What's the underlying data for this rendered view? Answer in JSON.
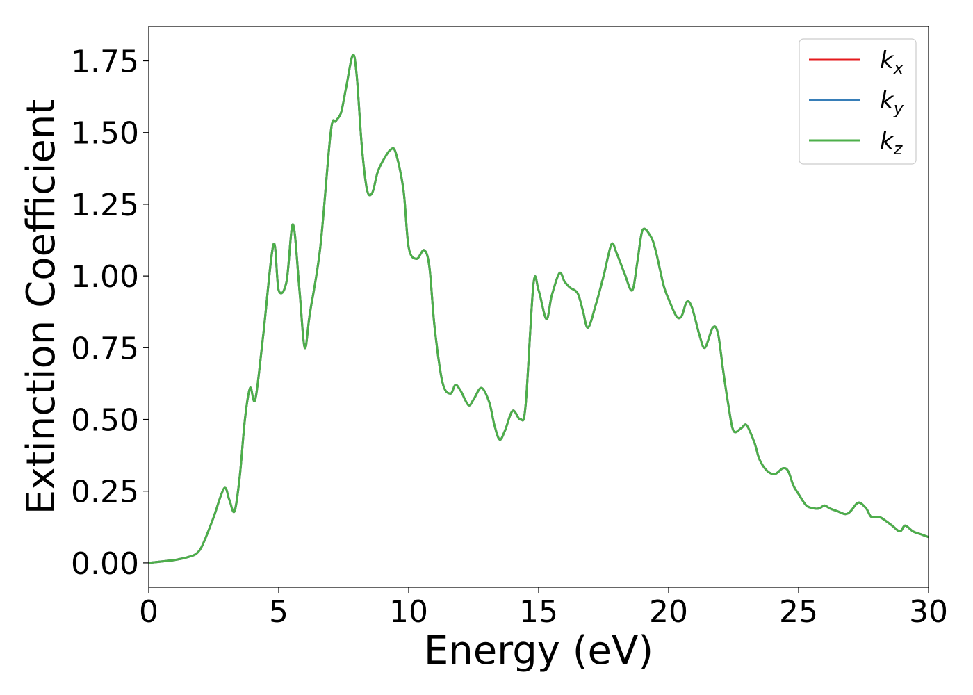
{
  "chart_data": {
    "type": "line",
    "title": "",
    "xlabel": "Energy (eV)",
    "ylabel": "Extinction Coefficient",
    "xlim": [
      0,
      30
    ],
    "ylim": [
      -0.085,
      1.87
    ],
    "xticks": [
      0,
      5,
      10,
      15,
      20,
      25,
      30
    ],
    "xtick_labels": [
      "0",
      "5",
      "10",
      "15",
      "20",
      "25",
      "30"
    ],
    "yticks": [
      0,
      0.25,
      0.5,
      0.75,
      1.0,
      1.25,
      1.5,
      1.75
    ],
    "ytick_labels": [
      "0.00",
      "0.25",
      "0.50",
      "0.75",
      "1.00",
      "1.25",
      "1.50",
      "1.75"
    ],
    "grid": false,
    "legend_position": "top-right",
    "x": [
      0,
      0.5,
      1.0,
      1.5,
      1.8,
      2.0,
      2.2,
      2.5,
      2.9,
      3.1,
      3.3,
      3.5,
      3.7,
      3.9,
      4.1,
      4.4,
      4.8,
      5.0,
      5.3,
      5.55,
      5.8,
      6.0,
      6.2,
      6.6,
      7.0,
      7.2,
      7.4,
      7.6,
      7.85,
      8.0,
      8.2,
      8.4,
      8.6,
      8.8,
      9.0,
      9.3,
      9.5,
      9.8,
      10.0,
      10.3,
      10.6,
      10.8,
      11.0,
      11.3,
      11.6,
      11.8,
      12.0,
      12.3,
      12.5,
      12.8,
      13.1,
      13.3,
      13.5,
      13.7,
      14.0,
      14.3,
      14.5,
      14.8,
      15.0,
      15.3,
      15.5,
      15.8,
      16.0,
      16.2,
      16.5,
      16.7,
      16.9,
      17.2,
      17.5,
      17.8,
      18.0,
      18.3,
      18.6,
      18.8,
      19.0,
      19.3,
      19.5,
      19.8,
      20.0,
      20.3,
      20.5,
      20.7,
      20.9,
      21.2,
      21.4,
      21.7,
      21.9,
      22.1,
      22.3,
      22.5,
      22.8,
      23.0,
      23.3,
      23.5,
      23.8,
      24.1,
      24.4,
      24.6,
      24.8,
      25.0,
      25.3,
      25.6,
      25.8,
      26.0,
      26.2,
      26.5,
      26.8,
      27.0,
      27.3,
      27.6,
      27.8,
      28.1,
      28.3,
      28.6,
      28.9,
      29.1,
      29.4,
      29.7,
      30.0
    ],
    "series": [
      {
        "name": "k_x",
        "color": "#e41a1c",
        "values": [
          0.0,
          0.005,
          0.01,
          0.02,
          0.03,
          0.05,
          0.09,
          0.16,
          0.26,
          0.22,
          0.18,
          0.3,
          0.5,
          0.61,
          0.57,
          0.79,
          1.11,
          0.95,
          0.98,
          1.18,
          0.95,
          0.75,
          0.87,
          1.1,
          1.5,
          1.54,
          1.57,
          1.66,
          1.77,
          1.7,
          1.45,
          1.3,
          1.29,
          1.36,
          1.4,
          1.44,
          1.43,
          1.3,
          1.1,
          1.06,
          1.09,
          1.03,
          0.82,
          0.63,
          0.59,
          0.62,
          0.6,
          0.55,
          0.57,
          0.61,
          0.56,
          0.48,
          0.43,
          0.46,
          0.53,
          0.5,
          0.55,
          0.97,
          0.95,
          0.85,
          0.93,
          1.01,
          0.98,
          0.96,
          0.94,
          0.88,
          0.82,
          0.9,
          1.0,
          1.11,
          1.08,
          1.01,
          0.95,
          1.05,
          1.16,
          1.14,
          1.09,
          0.97,
          0.92,
          0.86,
          0.86,
          0.91,
          0.89,
          0.79,
          0.75,
          0.82,
          0.8,
          0.67,
          0.55,
          0.46,
          0.47,
          0.48,
          0.42,
          0.36,
          0.32,
          0.31,
          0.33,
          0.32,
          0.27,
          0.24,
          0.2,
          0.19,
          0.19,
          0.2,
          0.19,
          0.18,
          0.17,
          0.18,
          0.21,
          0.19,
          0.16,
          0.16,
          0.15,
          0.13,
          0.11,
          0.13,
          0.11,
          0.1,
          0.09
        ]
      },
      {
        "name": "k_y",
        "color": "#377eb8",
        "values": [
          0.0,
          0.005,
          0.01,
          0.02,
          0.03,
          0.05,
          0.09,
          0.16,
          0.26,
          0.22,
          0.18,
          0.3,
          0.5,
          0.61,
          0.57,
          0.79,
          1.11,
          0.95,
          0.98,
          1.18,
          0.95,
          0.75,
          0.87,
          1.1,
          1.5,
          1.54,
          1.57,
          1.66,
          1.77,
          1.7,
          1.45,
          1.3,
          1.29,
          1.36,
          1.4,
          1.44,
          1.43,
          1.3,
          1.1,
          1.06,
          1.09,
          1.03,
          0.82,
          0.63,
          0.59,
          0.62,
          0.6,
          0.55,
          0.57,
          0.61,
          0.56,
          0.48,
          0.43,
          0.46,
          0.53,
          0.5,
          0.55,
          0.97,
          0.95,
          0.85,
          0.93,
          1.01,
          0.98,
          0.96,
          0.94,
          0.88,
          0.82,
          0.9,
          1.0,
          1.11,
          1.08,
          1.01,
          0.95,
          1.05,
          1.16,
          1.14,
          1.09,
          0.97,
          0.92,
          0.86,
          0.86,
          0.91,
          0.89,
          0.79,
          0.75,
          0.82,
          0.8,
          0.67,
          0.55,
          0.46,
          0.47,
          0.48,
          0.42,
          0.36,
          0.32,
          0.31,
          0.33,
          0.32,
          0.27,
          0.24,
          0.2,
          0.19,
          0.19,
          0.2,
          0.19,
          0.18,
          0.17,
          0.18,
          0.21,
          0.19,
          0.16,
          0.16,
          0.15,
          0.13,
          0.11,
          0.13,
          0.11,
          0.1,
          0.09
        ]
      },
      {
        "name": "k_z",
        "color": "#4daf4a",
        "values": [
          0.0,
          0.005,
          0.01,
          0.02,
          0.03,
          0.05,
          0.09,
          0.16,
          0.26,
          0.22,
          0.18,
          0.3,
          0.5,
          0.61,
          0.57,
          0.79,
          1.11,
          0.95,
          0.98,
          1.18,
          0.95,
          0.75,
          0.87,
          1.1,
          1.5,
          1.54,
          1.57,
          1.66,
          1.77,
          1.7,
          1.45,
          1.3,
          1.29,
          1.36,
          1.4,
          1.44,
          1.43,
          1.3,
          1.1,
          1.06,
          1.09,
          1.03,
          0.82,
          0.63,
          0.59,
          0.62,
          0.6,
          0.55,
          0.57,
          0.61,
          0.56,
          0.48,
          0.43,
          0.46,
          0.53,
          0.5,
          0.55,
          0.97,
          0.95,
          0.85,
          0.93,
          1.01,
          0.98,
          0.96,
          0.94,
          0.88,
          0.82,
          0.9,
          1.0,
          1.11,
          1.08,
          1.01,
          0.95,
          1.05,
          1.16,
          1.14,
          1.09,
          0.97,
          0.92,
          0.86,
          0.86,
          0.91,
          0.89,
          0.79,
          0.75,
          0.82,
          0.8,
          0.67,
          0.55,
          0.46,
          0.47,
          0.48,
          0.42,
          0.36,
          0.32,
          0.31,
          0.33,
          0.32,
          0.27,
          0.24,
          0.2,
          0.19,
          0.19,
          0.2,
          0.19,
          0.18,
          0.17,
          0.18,
          0.21,
          0.19,
          0.16,
          0.16,
          0.15,
          0.13,
          0.11,
          0.13,
          0.11,
          0.1,
          0.09
        ]
      }
    ]
  },
  "legend": {
    "items": [
      {
        "base": "k",
        "sub": "x",
        "color": "#e41a1c"
      },
      {
        "base": "k",
        "sub": "y",
        "color": "#377eb8"
      },
      {
        "base": "k",
        "sub": "z",
        "color": "#4daf4a"
      }
    ]
  }
}
